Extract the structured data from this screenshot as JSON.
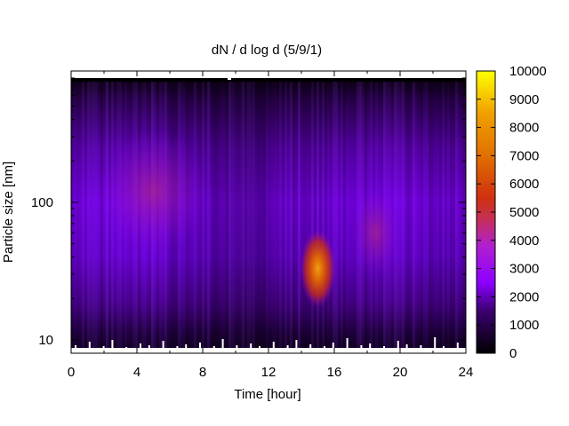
{
  "chart_data": {
    "type": "heatmap",
    "title": "dN / d log d (5/9/1)",
    "xlabel": "Time [hour]",
    "ylabel": "Particle size [nm]",
    "xlim": [
      0,
      24
    ],
    "ylim": [
      8,
      900
    ],
    "yscale": "log",
    "x_ticks": [
      "0",
      "4",
      "8",
      "12",
      "16",
      "20",
      "24"
    ],
    "y_ticks": [
      "10",
      "100"
    ],
    "colorbar": {
      "range": [
        0,
        10000
      ],
      "ticks": [
        "0",
        "1000",
        "2000",
        "3000",
        "4000",
        "5000",
        "6000",
        "7000",
        "8000",
        "9000",
        "10000"
      ],
      "colormap": "black-purple-red-orange-yellow",
      "colors": [
        "#000000",
        "#5a00a0",
        "#8c00ff",
        "#bf3090",
        "#d04010",
        "#e07000",
        "#f0a000",
        "#ffff00"
      ]
    },
    "features": [
      {
        "x": 15,
        "y": 33,
        "value": 8000
      },
      {
        "x": 18.5,
        "y": 60,
        "value": 3500
      },
      {
        "x": 5,
        "y": 120,
        "value": 2300
      }
    ],
    "background_value": 1800,
    "grid": false
  }
}
